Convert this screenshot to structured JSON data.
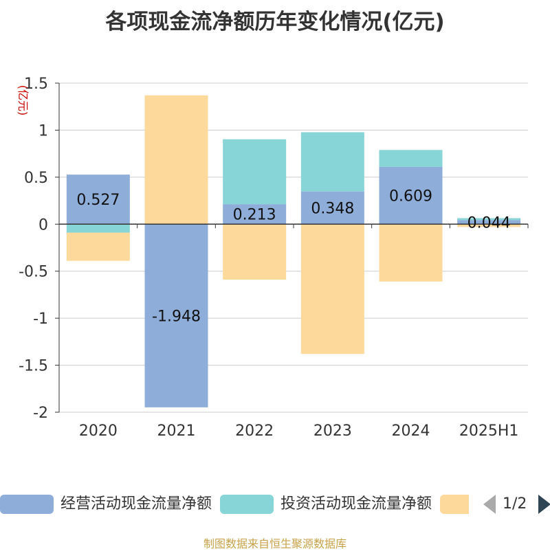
{
  "title": "各项现金流净额历年变化情况(亿元)",
  "source": "制图数据来自恒生聚源数据库",
  "pager": {
    "text": "1/2"
  },
  "colors": {
    "operating": "#8eadd9",
    "investing": "#87d5d6",
    "financing": "#fed99c",
    "axis": "#333333",
    "grid": "#cccccc",
    "unit": "#cc0000"
  },
  "chart_data": {
    "type": "bar",
    "stacked": true,
    "unit_label": "(亿元)",
    "categories": [
      "2020",
      "2021",
      "2022",
      "2023",
      "2024",
      "2025H1"
    ],
    "ylim": [
      -2,
      1.5
    ],
    "yticks": [
      1.5,
      1,
      0.5,
      0,
      -0.5,
      -1,
      -1.5,
      -2
    ],
    "ytick_labels": [
      "1.5",
      "1",
      "0.5",
      "0",
      "-0.5",
      "-1",
      "-1.5",
      "-2"
    ],
    "grid": true,
    "legend_position": "bottom",
    "series": [
      {
        "name": "经营活动现金流量净额",
        "color_key": "operating",
        "values": [
          0.527,
          -1.948,
          0.213,
          0.348,
          0.609,
          0.044
        ],
        "labels": [
          "0.527",
          "-1.948",
          "0.213",
          "0.348",
          "0.609",
          "0.044"
        ],
        "show_labels": true
      },
      {
        "name": "投资活动现金流量净额",
        "color_key": "investing",
        "values": [
          -0.09,
          0.0,
          0.69,
          0.63,
          0.18,
          0.02
        ],
        "show_labels": false
      },
      {
        "name": "",
        "color_key": "financing",
        "values": [
          -0.3,
          1.37,
          -0.59,
          -1.38,
          -0.61,
          -0.03
        ],
        "show_labels": false
      }
    ]
  }
}
